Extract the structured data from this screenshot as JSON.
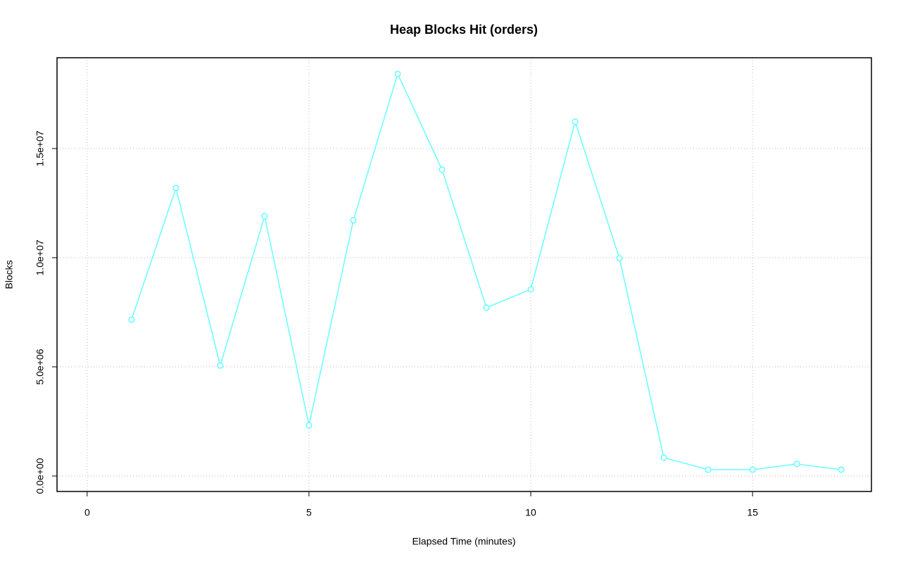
{
  "chart_data": {
    "type": "line",
    "title": "Heap Blocks Hit (orders)",
    "x_label": "Elapsed Time (minutes)",
    "y_label": "Blocks",
    "x": [
      1,
      2,
      3,
      4,
      5,
      6,
      7,
      8,
      9,
      10,
      11,
      12,
      13,
      14,
      15,
      16,
      17
    ],
    "series": [
      {
        "name": "orders",
        "color": "#66ffff",
        "values": [
          7160000,
          13190000,
          5060000,
          11900000,
          2320000,
          11710000,
          18420000,
          14030000,
          7710000,
          8550000,
          16230000,
          9970000,
          840000,
          290000,
          290000,
          550000,
          290000
        ]
      }
    ],
    "xlim": [
      -0.68,
      17.68
    ],
    "ylim": [
      -710000,
      19160000
    ],
    "xticks": [
      0,
      5,
      10,
      15
    ],
    "yticks": [
      {
        "value": 0,
        "label": "0.0e+00"
      },
      {
        "value": 5000000,
        "label": "5.0e+06"
      },
      {
        "value": 10000000,
        "label": "1.0e+07"
      },
      {
        "value": 15000000,
        "label": "1.5e+07"
      }
    ],
    "grid": true
  }
}
